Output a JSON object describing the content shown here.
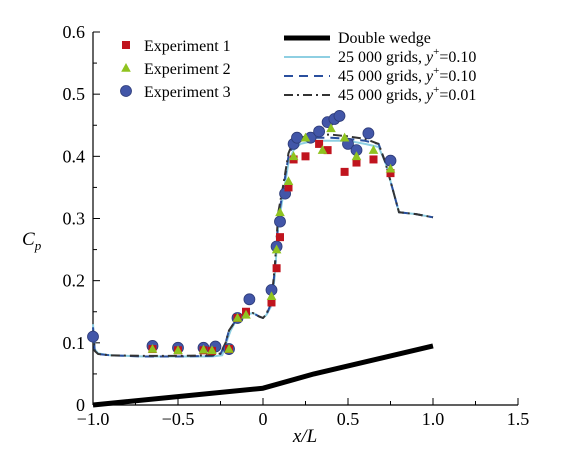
{
  "chart_data": {
    "type": "scatter",
    "xlim": [
      -1.0,
      1.5
    ],
    "ylim": [
      0,
      0.6
    ],
    "xticks": [
      -1.0,
      -0.5,
      0,
      0.5,
      1.0,
      1.5
    ],
    "xtick_labels": [
      "−1.0",
      "−0.5",
      "0",
      "0.5",
      "1.0",
      "1.5"
    ],
    "yticks": [
      0,
      0.1,
      0.2,
      0.3,
      0.4,
      0.5,
      0.6
    ],
    "ytick_labels": [
      "0",
      "0.1",
      "0.2",
      "0.3",
      "0.4",
      "0.5",
      "0.6"
    ],
    "xlabel": "x/L",
    "ylabel": "C",
    "ylabel_sub": "p",
    "legend_left_position": "top-left",
    "legend_right_position": "top-right",
    "grid": false,
    "series": [
      {
        "name": "Experiment 1",
        "kind": "scatter",
        "marker": "square",
        "color": "#c0141e",
        "x": [
          -0.65,
          -0.5,
          -0.35,
          -0.3,
          -0.2,
          -0.15,
          -0.1,
          0.05,
          0.08,
          0.1,
          0.15,
          0.18,
          0.25,
          0.33,
          0.38,
          0.48,
          0.55,
          0.65,
          0.75
        ],
        "y": [
          0.09,
          0.088,
          0.088,
          0.087,
          0.09,
          0.14,
          0.15,
          0.165,
          0.22,
          0.27,
          0.35,
          0.395,
          0.4,
          0.42,
          0.41,
          0.375,
          0.39,
          0.395,
          0.373
        ]
      },
      {
        "name": "Experiment 2",
        "kind": "scatter",
        "marker": "triangle",
        "color": "#8fc31f",
        "x": [
          -0.65,
          -0.5,
          -0.35,
          -0.3,
          -0.2,
          -0.15,
          -0.1,
          0.05,
          0.08,
          0.1,
          0.15,
          0.18,
          0.25,
          0.35,
          0.4,
          0.48,
          0.55,
          0.65,
          0.75
        ],
        "y": [
          0.09,
          0.088,
          0.089,
          0.088,
          0.09,
          0.14,
          0.145,
          0.175,
          0.25,
          0.31,
          0.36,
          0.4,
          0.43,
          0.41,
          0.445,
          0.43,
          0.4,
          0.41,
          0.38
        ]
      },
      {
        "name": "Experiment 3",
        "kind": "scatter",
        "marker": "circle",
        "color": "#4256a8",
        "x": [
          -1.0,
          -0.65,
          -0.5,
          -0.35,
          -0.28,
          -0.2,
          -0.15,
          -0.08,
          0.05,
          0.08,
          0.1,
          0.13,
          0.18,
          0.2,
          0.28,
          0.33,
          0.38,
          0.42,
          0.45,
          0.5,
          0.55,
          0.62,
          0.75
        ],
        "y": [
          0.11,
          0.095,
          0.092,
          0.092,
          0.094,
          0.09,
          0.14,
          0.17,
          0.185,
          0.255,
          0.295,
          0.34,
          0.42,
          0.43,
          0.43,
          0.44,
          0.455,
          0.46,
          0.465,
          0.42,
          0.41,
          0.437,
          0.393
        ]
      },
      {
        "name": "Double wedge",
        "kind": "line",
        "color": "#000000",
        "width": 5,
        "dash": "",
        "x": [
          -1.0,
          0.0,
          0.3,
          1.0
        ],
        "y": [
          0.0,
          0.027,
          0.05,
          0.095
        ]
      },
      {
        "name": "25 000 grids, y+=0.10",
        "kind": "line",
        "color": "#8ecfe2",
        "width": 2,
        "dash": "",
        "x": [
          -1.0,
          -0.99,
          -0.97,
          -0.9,
          -0.7,
          -0.5,
          -0.3,
          -0.24,
          -0.21,
          -0.19,
          -0.15,
          -0.1,
          -0.06,
          -0.02,
          0.0,
          0.02,
          0.05,
          0.07,
          0.09,
          0.12,
          0.15,
          0.18,
          0.22,
          0.3,
          0.4,
          0.5,
          0.6,
          0.68,
          0.72,
          0.76,
          0.8,
          0.9,
          1.0
        ],
        "y": [
          0.13,
          0.09,
          0.083,
          0.08,
          0.078,
          0.078,
          0.078,
          0.08,
          0.105,
          0.12,
          0.14,
          0.145,
          0.148,
          0.142,
          0.14,
          0.145,
          0.16,
          0.21,
          0.29,
          0.34,
          0.39,
          0.41,
          0.42,
          0.425,
          0.425,
          0.425,
          0.42,
          0.415,
          0.39,
          0.35,
          0.31,
          0.307,
          0.302
        ]
      },
      {
        "name": "45 000 grids, y+=0.10",
        "kind": "line",
        "color": "#2a4f9e",
        "width": 2,
        "dash": "9,6",
        "x": [
          -1.0,
          -0.99,
          -0.97,
          -0.9,
          -0.7,
          -0.5,
          -0.3,
          -0.25,
          -0.22,
          -0.2,
          -0.15,
          -0.1,
          -0.06,
          -0.02,
          0.0,
          0.02,
          0.05,
          0.07,
          0.09,
          0.12,
          0.15,
          0.18,
          0.22,
          0.3,
          0.4,
          0.5,
          0.6,
          0.68,
          0.72,
          0.76,
          0.8,
          0.9,
          1.0
        ],
        "y": [
          0.125,
          0.088,
          0.082,
          0.08,
          0.078,
          0.078,
          0.079,
          0.082,
          0.1,
          0.12,
          0.14,
          0.145,
          0.148,
          0.142,
          0.14,
          0.145,
          0.165,
          0.22,
          0.3,
          0.35,
          0.4,
          0.42,
          0.425,
          0.43,
          0.43,
          0.428,
          0.425,
          0.42,
          0.39,
          0.35,
          0.31,
          0.307,
          0.302
        ]
      },
      {
        "name": "45 000 grids, y+=0.01",
        "kind": "line",
        "color": "#333333",
        "width": 2,
        "dash": "9,4,2,4",
        "x": [
          -1.0,
          -0.99,
          -0.97,
          -0.9,
          -0.7,
          -0.5,
          -0.3,
          -0.25,
          -0.22,
          -0.2,
          -0.15,
          -0.1,
          -0.06,
          -0.02,
          0.0,
          0.02,
          0.05,
          0.07,
          0.09,
          0.12,
          0.15,
          0.18,
          0.22,
          0.3,
          0.4,
          0.5,
          0.6,
          0.68,
          0.72,
          0.76,
          0.8,
          0.9,
          1.0
        ],
        "y": [
          0.12,
          0.087,
          0.082,
          0.08,
          0.079,
          0.079,
          0.08,
          0.083,
          0.1,
          0.12,
          0.14,
          0.145,
          0.148,
          0.142,
          0.14,
          0.146,
          0.168,
          0.225,
          0.31,
          0.355,
          0.405,
          0.425,
          0.43,
          0.435,
          0.435,
          0.432,
          0.428,
          0.42,
          0.39,
          0.35,
          0.31,
          0.307,
          0.302
        ]
      }
    ],
    "legend_left": [
      {
        "label": "Experiment 1",
        "marker": "square",
        "color": "#c0141e"
      },
      {
        "label": "Experiment 2",
        "marker": "triangle",
        "color": "#8fc31f"
      },
      {
        "label": "Experiment 3",
        "marker": "circle",
        "color": "#4256a8"
      }
    ],
    "legend_right": [
      {
        "label": "Double wedge",
        "color": "#000000",
        "width": 5,
        "dash": "",
        "label_main": "Double wedge",
        "label_sup": "",
        "label_tail": ""
      },
      {
        "label": "25 000 grids, y+=0.10",
        "color": "#8ecfe2",
        "width": 2,
        "dash": "",
        "label_main": "25 000 grids, ",
        "label_sup": "+",
        "label_tail": "=0.10"
      },
      {
        "label": "45 000 grids, y+=0.10",
        "color": "#2a4f9e",
        "width": 2,
        "dash": "9,6",
        "label_main": "45 000 grids, ",
        "label_sup": "+",
        "label_tail": "=0.10"
      },
      {
        "label": "45 000 grids, y+=0.01",
        "color": "#333333",
        "width": 2,
        "dash": "9,4,2,4",
        "label_main": "45 000 grids, ",
        "label_sup": "+",
        "label_tail": "=0.01"
      }
    ]
  }
}
